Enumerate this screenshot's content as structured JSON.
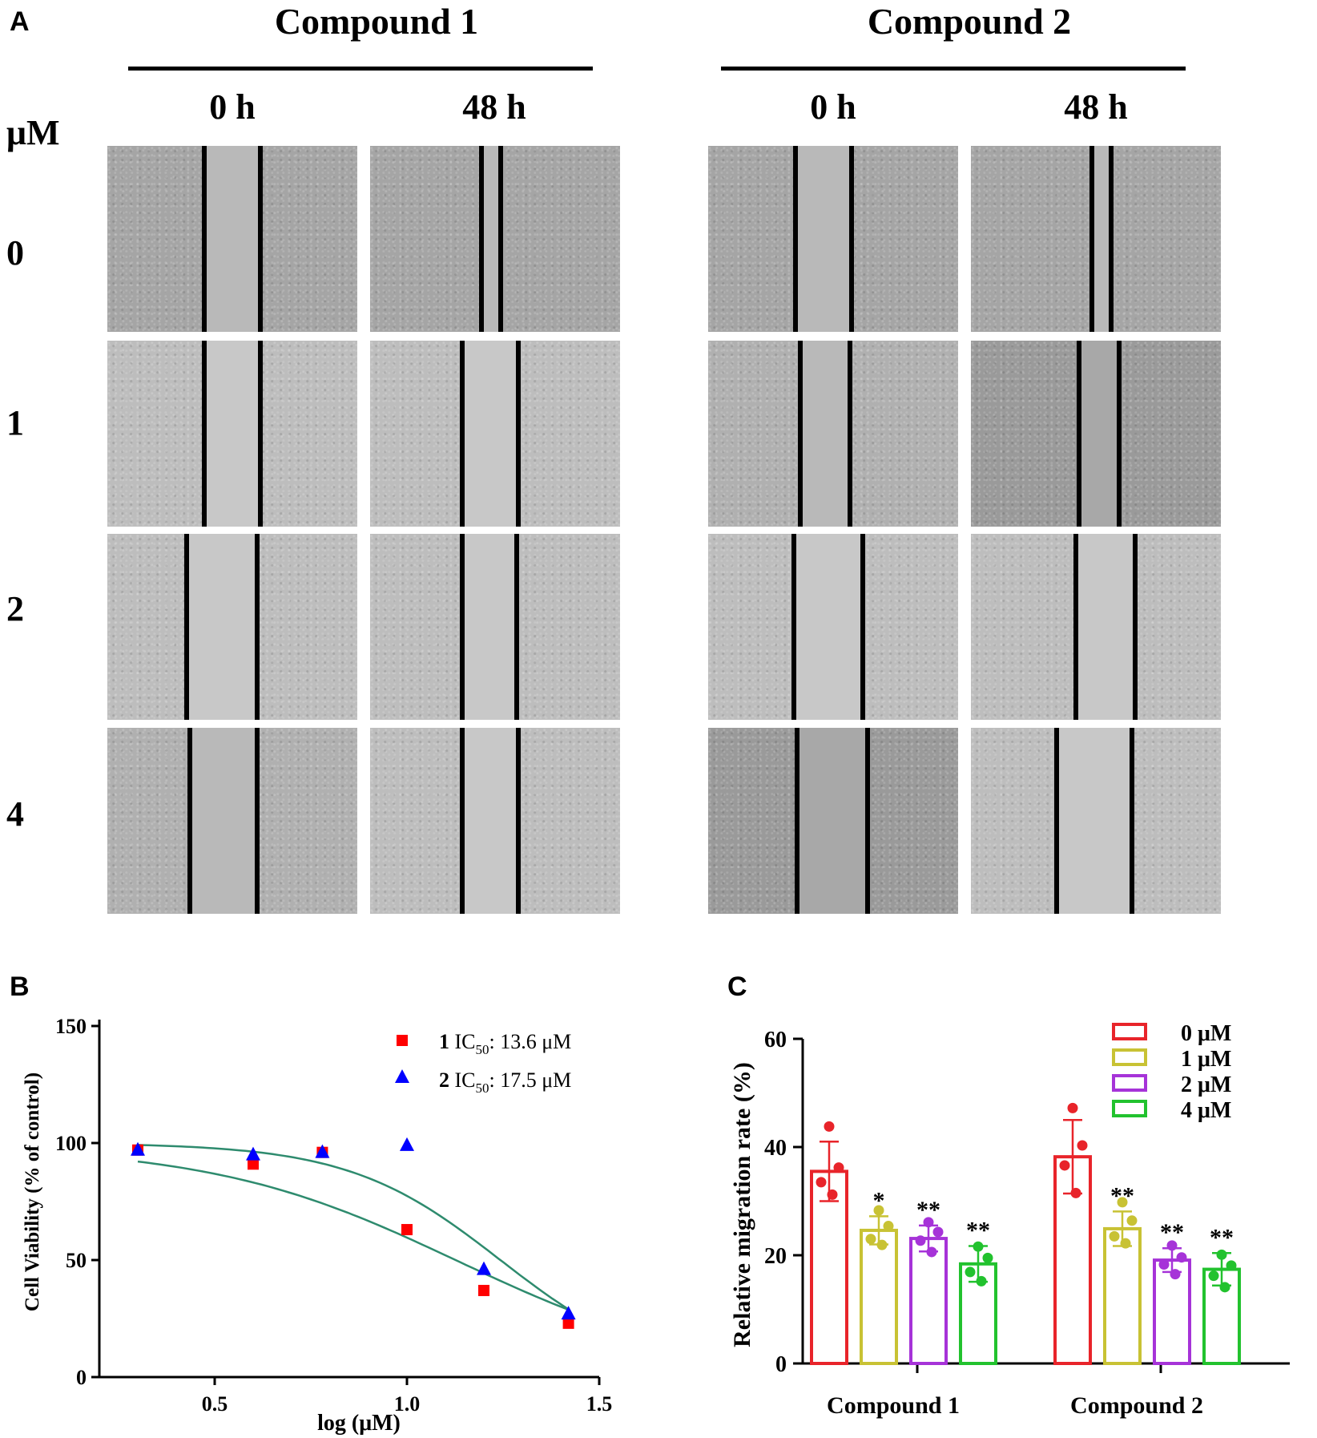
{
  "panelA": {
    "letter": "A",
    "unit_label": "μM",
    "compounds": [
      {
        "title": "Compound 1",
        "times": [
          "0 h",
          "48 h"
        ]
      },
      {
        "title": "Compound 2",
        "times": [
          "0 h",
          "48 h"
        ]
      }
    ],
    "concentrations": [
      "0",
      "1",
      "2",
      "4"
    ]
  },
  "chart_data": [
    {
      "type": "scatter",
      "panel": "B",
      "title": "",
      "xlabel": "log (μM)",
      "ylabel": "Cell Viability (% of control)",
      "xlim": [
        0.2,
        1.5
      ],
      "ylim": [
        0,
        150
      ],
      "xticks": [
        "0.5",
        "1.0",
        "1.5"
      ],
      "yticks": [
        "0",
        "50",
        "100",
        "150"
      ],
      "legend_position": "top-right",
      "series": [
        {
          "name": "1",
          "ic50_label": "IC",
          "ic50_sub": "50",
          "ic50_value": ": 13.6 μM",
          "marker": "square",
          "color": "#ff0000",
          "x": [
            0.3,
            0.6,
            0.78,
            1.0,
            1.2,
            1.42
          ],
          "y": [
            97,
            91,
            96,
            63,
            37,
            23
          ],
          "fit_top": 99,
          "fit_bottom": 0,
          "fit_logic50": 1.133,
          "fit_hill": 1.35
        },
        {
          "name": "2",
          "ic50_label": "IC",
          "ic50_sub": "50",
          "ic50_value": ": 17.5 μM",
          "marker": "triangle",
          "color": "#0000ff",
          "x": [
            0.3,
            0.6,
            0.78,
            1.0,
            1.2,
            1.42
          ],
          "y": [
            97,
            95,
            96,
            99,
            46,
            27
          ],
          "fit_top": 100,
          "fit_bottom": 0,
          "fit_logic50": 1.243,
          "fit_hill": 2.2
        }
      ],
      "fit_color": "#2e8b6e"
    },
    {
      "type": "bar",
      "panel": "C",
      "title": "",
      "xlabel": "",
      "ylabel": "Relative migration rate (%)",
      "ylim": [
        0,
        60
      ],
      "yticks": [
        "0",
        "20",
        "40",
        "60"
      ],
      "categories": [
        "Compound 1",
        "Compound 2"
      ],
      "legend_position": "top-right",
      "series": [
        {
          "name": "0 μM",
          "color": "#e8242a",
          "values": [
            35.5,
            38.2
          ],
          "errors": [
            5.5,
            6.8
          ],
          "sig": [
            "",
            ""
          ],
          "points": [
            [
              43.8,
              36.2,
              33.5,
              31.2
            ],
            [
              47.2,
              40.3,
              36.6,
              31.5
            ]
          ]
        },
        {
          "name": "1 μM",
          "color": "#c8c234",
          "values": [
            24.6,
            24.9
          ],
          "errors": [
            2.6,
            3.2
          ],
          "sig": [
            "*",
            "**"
          ],
          "points": [
            [
              28.3,
              25.4,
              23.0,
              21.9
            ],
            [
              29.8,
              26.4,
              23.5,
              22.2
            ]
          ]
        },
        {
          "name": "2 μM",
          "color": "#a633d8",
          "values": [
            23.1,
            19.1
          ],
          "errors": [
            2.4,
            2.2
          ],
          "sig": [
            "**",
            "**"
          ],
          "points": [
            [
              26.1,
              24.3,
              22.7,
              20.6
            ],
            [
              21.8,
              19.6,
              18.3,
              16.5
            ]
          ]
        },
        {
          "name": "4 μM",
          "color": "#22c22e",
          "values": [
            18.4,
            17.4
          ],
          "errors": [
            3.3,
            3.0
          ],
          "sig": [
            "**",
            "**"
          ],
          "points": [
            [
              21.6,
              19.5,
              16.9,
              15.2
            ],
            [
              20.1,
              18.1,
              16.2,
              14.1
            ]
          ]
        }
      ]
    }
  ]
}
